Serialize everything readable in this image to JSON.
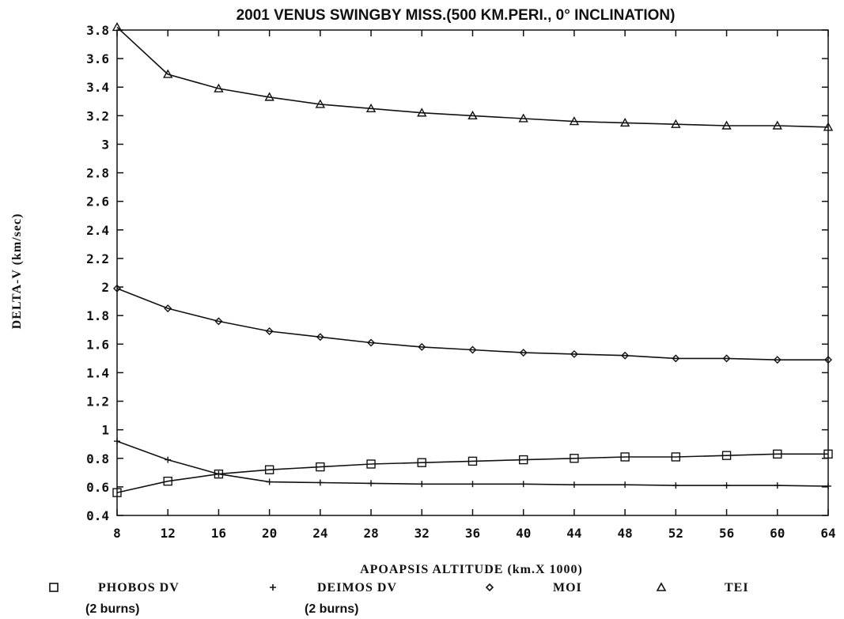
{
  "chart_data": {
    "type": "line",
    "title": "2001 VENUS SWINGBY MISS.(500 KM.PERI., 0° INCLINATION)",
    "xlabel": "APOAPSIS ALTITUDE (km.X 1000)",
    "ylabel": "DELTA-V (km/sec)",
    "xlim": [
      8,
      64
    ],
    "ylim": [
      0.4,
      3.8
    ],
    "x_ticks": [
      "8",
      "12",
      "16",
      "20",
      "24",
      "28",
      "32",
      "36",
      "40",
      "44",
      "48",
      "52",
      "56",
      "60",
      "64"
    ],
    "y_ticks": [
      "0.4",
      "0.6",
      "0.8",
      "1",
      "1.2",
      "1.4",
      "1.6",
      "1.8",
      "2",
      "2.2",
      "2.4",
      "2.6",
      "2.8",
      "3",
      "3.2",
      "3.4",
      "3.6",
      "3.8"
    ],
    "x": [
      8,
      12,
      16,
      20,
      24,
      28,
      32,
      36,
      40,
      44,
      48,
      52,
      56,
      60,
      64
    ],
    "series": [
      {
        "name": "PHOBOS DV",
        "sub": "(2 burns)",
        "marker": "square",
        "values": [
          0.56,
          0.64,
          0.69,
          0.72,
          0.74,
          0.76,
          0.77,
          0.78,
          0.79,
          0.8,
          0.81,
          0.81,
          0.82,
          0.83,
          0.83
        ]
      },
      {
        "name": "DEIMOS DV",
        "sub": "(2 burns)",
        "marker": "plus",
        "values": [
          0.92,
          0.79,
          0.69,
          0.635,
          0.63,
          0.625,
          0.62,
          0.62,
          0.62,
          0.615,
          0.615,
          0.61,
          0.61,
          0.61,
          0.605
        ]
      },
      {
        "name": "MOI",
        "sub": "",
        "marker": "diamond",
        "values": [
          1.99,
          1.85,
          1.76,
          1.69,
          1.65,
          1.61,
          1.58,
          1.56,
          1.54,
          1.53,
          1.52,
          1.5,
          1.5,
          1.49,
          1.49
        ]
      },
      {
        "name": "TEI",
        "sub": "",
        "marker": "triangle",
        "values": [
          3.82,
          3.49,
          3.39,
          3.33,
          3.28,
          3.25,
          3.22,
          3.2,
          3.18,
          3.16,
          3.15,
          3.14,
          3.13,
          3.13,
          3.12
        ]
      }
    ],
    "grid": false,
    "legend_position": "bottom"
  }
}
